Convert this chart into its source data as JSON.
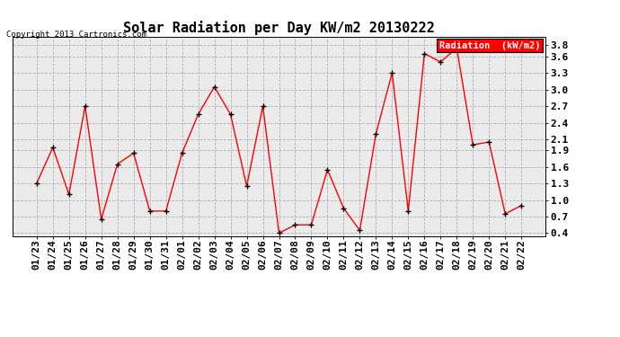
{
  "title": "Solar Radiation per Day KW/m2 20130222",
  "copyright": "Copyright 2013 Cartronics.com",
  "legend_label": "Radiation  (kW/m2)",
  "dates": [
    "01/23",
    "01/24",
    "01/25",
    "01/26",
    "01/27",
    "01/28",
    "01/29",
    "01/30",
    "01/31",
    "02/01",
    "02/02",
    "02/03",
    "02/04",
    "02/05",
    "02/06",
    "02/07",
    "02/08",
    "02/09",
    "02/10",
    "02/11",
    "02/12",
    "02/13",
    "02/14",
    "02/15",
    "02/16",
    "02/17",
    "02/18",
    "02/19",
    "02/20",
    "02/21",
    "02/22"
  ],
  "values": [
    1.3,
    1.95,
    1.1,
    2.7,
    0.65,
    1.65,
    1.85,
    0.8,
    0.8,
    1.85,
    2.55,
    3.05,
    2.55,
    1.25,
    2.7,
    0.4,
    0.55,
    0.55,
    1.55,
    0.85,
    0.45,
    2.2,
    3.3,
    0.8,
    3.65,
    3.5,
    3.75,
    2.0,
    2.05,
    0.75,
    0.9
  ],
  "yticks": [
    0.4,
    0.7,
    1.0,
    1.3,
    1.6,
    1.9,
    2.1,
    2.4,
    2.7,
    3.0,
    3.3,
    3.6,
    3.8
  ],
  "ymin": 0.35,
  "ymax": 3.95,
  "line_color": "#ff0000",
  "marker_color": "#000000",
  "bg_color": "#ffffff",
  "plot_bg_color": "#ebebeb",
  "grid_color": "#b0b0b0",
  "title_fontsize": 11,
  "tick_fontsize": 8,
  "copyright_fontsize": 6.5,
  "legend_fontsize": 7.5,
  "legend_bg_color": "#ff0000",
  "legend_text_color": "#ffffff"
}
